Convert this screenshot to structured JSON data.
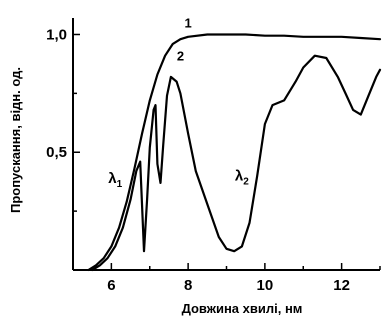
{
  "chart_data": {
    "type": "line",
    "xlabel": "Довжина хвилі, нм",
    "ylabel": "Пропускання, відн. од.",
    "xlim": [
      5,
      13
    ],
    "ylim": [
      0,
      1.07
    ],
    "x_ticks": [
      6,
      8,
      10,
      12
    ],
    "y_ticks": [
      0.5,
      1.0
    ],
    "x_tick_labels": [
      "6",
      "8",
      "10",
      "12"
    ],
    "y_tick_labels": [
      "0,5",
      "1,0"
    ],
    "grid": false,
    "series": [
      {
        "name": "1",
        "points": [
          [
            5.4,
            0.0
          ],
          [
            5.6,
            0.02
          ],
          [
            5.8,
            0.05
          ],
          [
            6.0,
            0.1
          ],
          [
            6.2,
            0.18
          ],
          [
            6.4,
            0.29
          ],
          [
            6.6,
            0.43
          ],
          [
            6.8,
            0.58
          ],
          [
            7.0,
            0.72
          ],
          [
            7.2,
            0.83
          ],
          [
            7.4,
            0.91
          ],
          [
            7.6,
            0.96
          ],
          [
            7.8,
            0.98
          ],
          [
            8.0,
            0.99
          ],
          [
            8.5,
            1.0
          ],
          [
            9.0,
            1.0
          ],
          [
            9.5,
            1.0
          ],
          [
            10.0,
            0.995
          ],
          [
            10.5,
            0.995
          ],
          [
            11.0,
            0.99
          ],
          [
            11.5,
            0.99
          ],
          [
            12.0,
            0.99
          ],
          [
            12.5,
            0.985
          ],
          [
            13.0,
            0.98
          ]
        ]
      },
      {
        "name": "2",
        "points": [
          [
            5.5,
            0.0
          ],
          [
            5.7,
            0.02
          ],
          [
            5.9,
            0.05
          ],
          [
            6.1,
            0.1
          ],
          [
            6.3,
            0.18
          ],
          [
            6.5,
            0.3
          ],
          [
            6.65,
            0.42
          ],
          [
            6.75,
            0.46
          ],
          [
            6.85,
            0.08
          ],
          [
            6.93,
            0.3
          ],
          [
            7.0,
            0.52
          ],
          [
            7.1,
            0.68
          ],
          [
            7.15,
            0.7
          ],
          [
            7.2,
            0.45
          ],
          [
            7.28,
            0.37
          ],
          [
            7.35,
            0.53
          ],
          [
            7.45,
            0.74
          ],
          [
            7.55,
            0.82
          ],
          [
            7.7,
            0.8
          ],
          [
            7.8,
            0.75
          ],
          [
            8.0,
            0.58
          ],
          [
            8.2,
            0.42
          ],
          [
            8.5,
            0.28
          ],
          [
            8.8,
            0.14
          ],
          [
            9.0,
            0.09
          ],
          [
            9.2,
            0.08
          ],
          [
            9.4,
            0.1
          ],
          [
            9.6,
            0.2
          ],
          [
            9.8,
            0.4
          ],
          [
            10.0,
            0.62
          ],
          [
            10.2,
            0.7
          ],
          [
            10.5,
            0.72
          ],
          [
            10.8,
            0.8
          ],
          [
            11.0,
            0.86
          ],
          [
            11.3,
            0.91
          ],
          [
            11.6,
            0.9
          ],
          [
            11.9,
            0.82
          ],
          [
            12.1,
            0.75
          ],
          [
            12.3,
            0.68
          ],
          [
            12.5,
            0.66
          ],
          [
            12.7,
            0.74
          ],
          [
            12.9,
            0.82
          ],
          [
            13.0,
            0.85
          ]
        ]
      }
    ],
    "annotations": [
      {
        "text": "1",
        "x": 8.0,
        "y": 1.03
      },
      {
        "text": "2",
        "x": 7.8,
        "y": 0.89
      },
      {
        "text": "λ",
        "sub": "1",
        "x": 6.1,
        "y": 0.37
      },
      {
        "text": "λ",
        "sub": "2",
        "x": 9.4,
        "y": 0.38
      }
    ],
    "colors": {
      "line": "#000000",
      "axis": "#000000"
    }
  }
}
